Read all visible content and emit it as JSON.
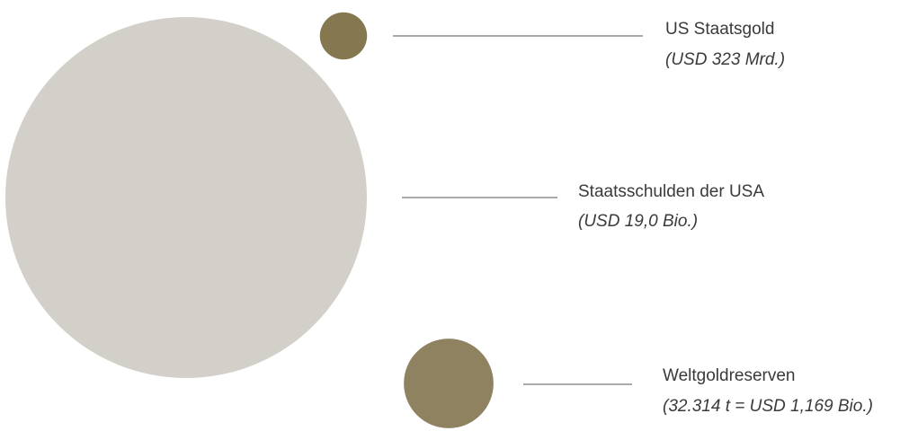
{
  "chart_data": {
    "type": "bubble",
    "title": "",
    "items": [
      {
        "name": "US Staatsgold",
        "value_label": "(USD 323 Mrd.)",
        "value_usd_bn": 323,
        "color": "#857750"
      },
      {
        "name": "Staatsschulden der USA",
        "value_label": "(USD 19,0 Bio.)",
        "value_usd_bn": 19000,
        "color": "#d3d0c9"
      },
      {
        "name": "Weltgoldreserven",
        "value_label": "(32.314 t = USD 1,169 Bio.)",
        "value_usd_bn": 1169,
        "color": "#8e8261"
      }
    ],
    "leader_line_color": "#555555"
  }
}
